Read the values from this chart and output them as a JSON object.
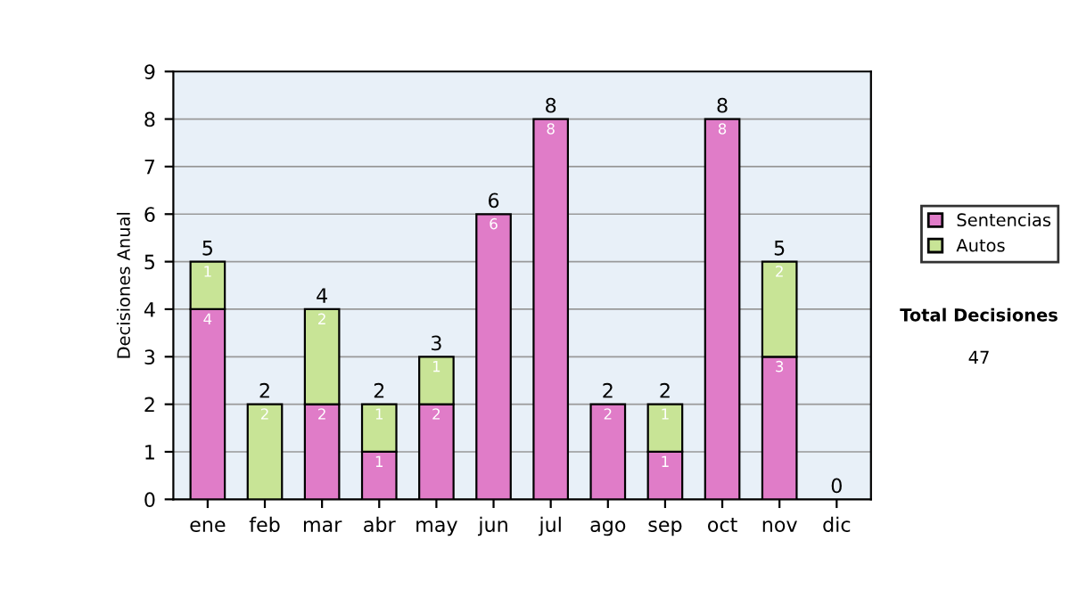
{
  "chart_data": {
    "type": "bar",
    "stacked": true,
    "ylabel": "Decisiones Anual",
    "categories": [
      "ene",
      "feb",
      "mar",
      "abr",
      "may",
      "jun",
      "jul",
      "ago",
      "sep",
      "oct",
      "nov",
      "dic"
    ],
    "series": [
      {
        "name": "Sentencias",
        "color": "#e07cc8",
        "values": [
          4,
          0,
          2,
          1,
          2,
          6,
          8,
          2,
          1,
          8,
          3,
          0
        ],
        "value_labels": [
          "4",
          null,
          "2",
          "1",
          "2",
          "6",
          "8",
          "2",
          "1",
          "8",
          "3",
          null
        ]
      },
      {
        "name": "Autos",
        "color": "#c8e496",
        "values": [
          1,
          2,
          2,
          1,
          1,
          0,
          0,
          0,
          1,
          0,
          2,
          0
        ],
        "value_labels": [
          "1",
          "2",
          "2",
          "1",
          "1",
          null,
          null,
          null,
          "1",
          null,
          "2",
          null
        ]
      }
    ],
    "totals": [
      "5",
      "2",
      "4",
      "2",
      "3",
      "6",
      "8",
      "2",
      "2",
      "8",
      "5",
      "0"
    ],
    "ylim": [
      0,
      9
    ],
    "yticks": [
      0,
      1,
      2,
      3,
      4,
      5,
      6,
      7,
      8,
      9
    ],
    "grid": "y",
    "legend": "right",
    "annotations": [
      "Total Decisiones",
      "47"
    ]
  }
}
